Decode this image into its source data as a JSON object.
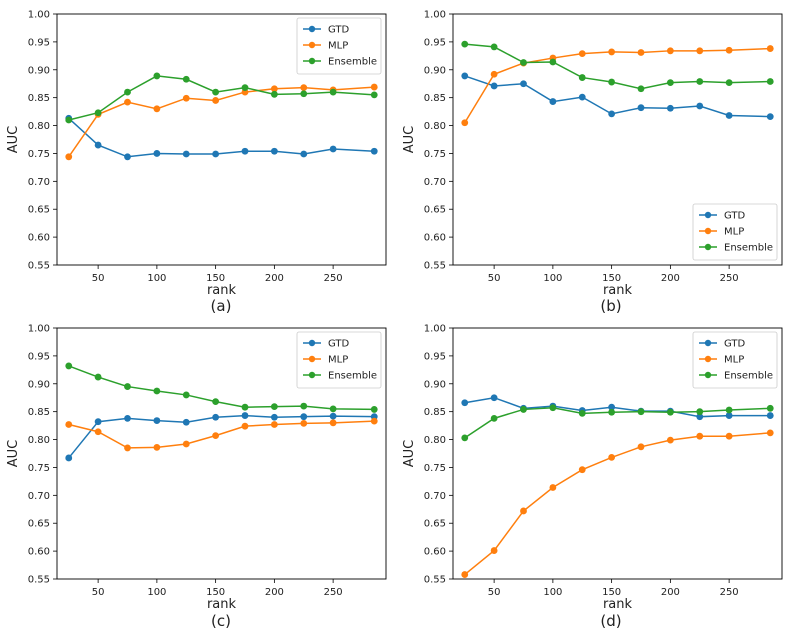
{
  "chart_data": [
    {
      "type": "line",
      "panel_label": "(a)",
      "xlabel": "rank",
      "ylabel": "AUC",
      "xlim": [
        15,
        295
      ],
      "ylim": [
        0.55,
        1.0
      ],
      "xticks": [
        50,
        100,
        150,
        200,
        250
      ],
      "xtick_labels": [
        "50",
        "100",
        "150",
        "200",
        "250"
      ],
      "yticks": [
        0.55,
        0.6,
        0.65,
        0.7,
        0.75,
        0.8,
        0.85,
        0.9,
        0.95,
        1.0
      ],
      "ytick_labels": [
        "0.55",
        "0.60",
        "0.65",
        "0.70",
        "0.75",
        "0.80",
        "0.85",
        "0.90",
        "0.95",
        "1.00"
      ],
      "legend_position": "top-right",
      "x": [
        25,
        50,
        75,
        100,
        125,
        150,
        175,
        200,
        225,
        250,
        285
      ],
      "series": [
        {
          "name": "GTD",
          "color": "#1f77b4",
          "values": [
            0.813,
            0.765,
            0.744,
            0.75,
            0.749,
            0.749,
            0.754,
            0.754,
            0.749,
            0.758,
            0.754
          ]
        },
        {
          "name": "MLP",
          "color": "#ff7f0e",
          "values": [
            0.744,
            0.82,
            0.842,
            0.83,
            0.849,
            0.845,
            0.86,
            0.866,
            0.868,
            0.864,
            0.869
          ]
        },
        {
          "name": "Ensemble",
          "color": "#2ca02c",
          "values": [
            0.81,
            0.823,
            0.86,
            0.889,
            0.883,
            0.86,
            0.868,
            0.856,
            0.857,
            0.86,
            0.855
          ]
        }
      ]
    },
    {
      "type": "line",
      "panel_label": "(b)",
      "xlabel": "rank",
      "ylabel": "AUC",
      "xlim": [
        15,
        295
      ],
      "ylim": [
        0.55,
        1.0
      ],
      "xticks": [
        50,
        100,
        150,
        200,
        250
      ],
      "xtick_labels": [
        "50",
        "100",
        "150",
        "200",
        "250"
      ],
      "yticks": [
        0.55,
        0.6,
        0.65,
        0.7,
        0.75,
        0.8,
        0.85,
        0.9,
        0.95,
        1.0
      ],
      "ytick_labels": [
        "0.55",
        "0.60",
        "0.65",
        "0.70",
        "0.75",
        "0.80",
        "0.85",
        "0.90",
        "0.95",
        "1.00"
      ],
      "legend_position": "bottom-right",
      "x": [
        25,
        50,
        75,
        100,
        125,
        150,
        175,
        200,
        225,
        250,
        285
      ],
      "series": [
        {
          "name": "GTD",
          "color": "#1f77b4",
          "values": [
            0.889,
            0.871,
            0.875,
            0.843,
            0.851,
            0.821,
            0.832,
            0.831,
            0.835,
            0.818,
            0.816
          ]
        },
        {
          "name": "MLP",
          "color": "#ff7f0e",
          "values": [
            0.805,
            0.892,
            0.912,
            0.921,
            0.929,
            0.932,
            0.931,
            0.934,
            0.934,
            0.935,
            0.938
          ]
        },
        {
          "name": "Ensemble",
          "color": "#2ca02c",
          "values": [
            0.946,
            0.941,
            0.913,
            0.914,
            0.886,
            0.878,
            0.866,
            0.877,
            0.879,
            0.877,
            0.879
          ]
        }
      ]
    },
    {
      "type": "line",
      "panel_label": "(c)",
      "xlabel": "rank",
      "ylabel": "AUC",
      "xlim": [
        15,
        295
      ],
      "ylim": [
        0.55,
        1.0
      ],
      "xticks": [
        50,
        100,
        150,
        200,
        250
      ],
      "xtick_labels": [
        "50",
        "100",
        "150",
        "200",
        "250"
      ],
      "yticks": [
        0.55,
        0.6,
        0.65,
        0.7,
        0.75,
        0.8,
        0.85,
        0.9,
        0.95,
        1.0
      ],
      "ytick_labels": [
        "0.55",
        "0.60",
        "0.65",
        "0.70",
        "0.75",
        "0.80",
        "0.85",
        "0.90",
        "0.95",
        "1.00"
      ],
      "legend_position": "top-right",
      "x": [
        25,
        50,
        75,
        100,
        125,
        150,
        175,
        200,
        225,
        250,
        285
      ],
      "series": [
        {
          "name": "GTD",
          "color": "#1f77b4",
          "values": [
            0.767,
            0.832,
            0.838,
            0.834,
            0.831,
            0.84,
            0.843,
            0.84,
            0.841,
            0.842,
            0.841
          ]
        },
        {
          "name": "MLP",
          "color": "#ff7f0e",
          "values": [
            0.827,
            0.814,
            0.785,
            0.786,
            0.792,
            0.807,
            0.824,
            0.827,
            0.829,
            0.83,
            0.833
          ]
        },
        {
          "name": "Ensemble",
          "color": "#2ca02c",
          "values": [
            0.932,
            0.912,
            0.895,
            0.887,
            0.88,
            0.868,
            0.858,
            0.859,
            0.86,
            0.855,
            0.854
          ]
        }
      ]
    },
    {
      "type": "line",
      "panel_label": "(d)",
      "xlabel": "rank",
      "ylabel": "AUC",
      "xlim": [
        15,
        295
      ],
      "ylim": [
        0.55,
        1.0
      ],
      "xticks": [
        50,
        100,
        150,
        200,
        250
      ],
      "xtick_labels": [
        "50",
        "100",
        "150",
        "200",
        "250"
      ],
      "yticks": [
        0.55,
        0.6,
        0.65,
        0.7,
        0.75,
        0.8,
        0.85,
        0.9,
        0.95,
        1.0
      ],
      "ytick_labels": [
        "0.55",
        "0.60",
        "0.65",
        "0.70",
        "0.75",
        "0.80",
        "0.85",
        "0.90",
        "0.95",
        "1.00"
      ],
      "legend_position": "top-right",
      "x": [
        25,
        50,
        75,
        100,
        125,
        150,
        175,
        200,
        225,
        250,
        285
      ],
      "series": [
        {
          "name": "GTD",
          "color": "#1f77b4",
          "values": [
            0.866,
            0.875,
            0.856,
            0.86,
            0.852,
            0.858,
            0.851,
            0.851,
            0.841,
            0.843,
            0.843
          ]
        },
        {
          "name": "MLP",
          "color": "#ff7f0e",
          "values": [
            0.558,
            0.601,
            0.672,
            0.714,
            0.746,
            0.768,
            0.787,
            0.799,
            0.806,
            0.806,
            0.812
          ]
        },
        {
          "name": "Ensemble",
          "color": "#2ca02c",
          "values": [
            0.803,
            0.838,
            0.854,
            0.857,
            0.847,
            0.849,
            0.85,
            0.849,
            0.85,
            0.853,
            0.856
          ]
        }
      ]
    }
  ]
}
